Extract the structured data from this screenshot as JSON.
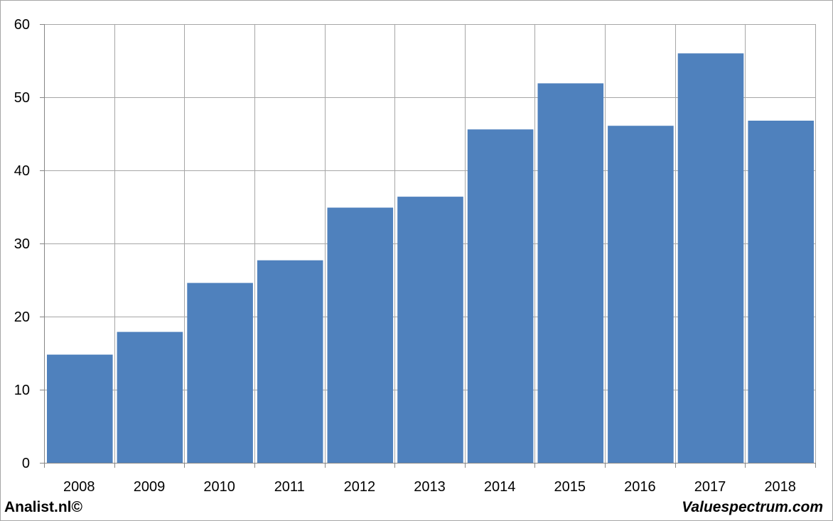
{
  "chart_data": {
    "type": "bar",
    "categories": [
      "2008",
      "2009",
      "2010",
      "2011",
      "2012",
      "2013",
      "2014",
      "2015",
      "2016",
      "2017",
      "2018"
    ],
    "values": [
      14.8,
      17.9,
      24.6,
      27.7,
      34.9,
      36.4,
      45.6,
      51.9,
      46.1,
      56.0,
      46.8
    ],
    "title": "",
    "xlabel": "",
    "ylabel": "",
    "ylim": [
      0,
      60
    ],
    "yticks": [
      0,
      10,
      20,
      30,
      40,
      50,
      60
    ],
    "grid": true,
    "bar_color": "#4f81bd",
    "grid_color": "#a6a6a6"
  },
  "footer": {
    "left": "Analist.nl©",
    "right": "Valuespectrum.com"
  }
}
